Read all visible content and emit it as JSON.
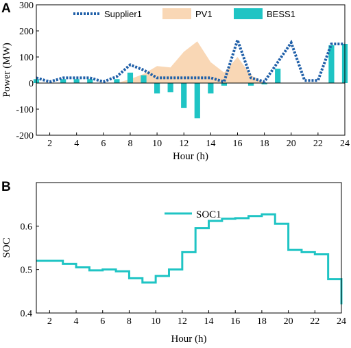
{
  "chart_data": [
    {
      "panel_label": "A",
      "type": "line",
      "xlabel": "Hour (h)",
      "ylabel": "Power (MW)",
      "xlim": [
        1,
        24
      ],
      "ylim": [
        -200,
        300
      ],
      "xticks": [
        "2",
        "4",
        "6",
        "8",
        "10",
        "12",
        "14",
        "16",
        "18",
        "20",
        "22",
        "24"
      ],
      "yticks": [
        "300",
        "200",
        "100",
        "0",
        "-100",
        "-200"
      ],
      "grid": false,
      "legend_position": "top",
      "series": [
        {
          "name": "Supplier1",
          "type": "line",
          "color": "#1f5fa8",
          "style": "dotted",
          "x": [
            1,
            2,
            3,
            4,
            5,
            6,
            7,
            8,
            9,
            10,
            11,
            12,
            13,
            14,
            15,
            16,
            17,
            18,
            19,
            20,
            21,
            22,
            23,
            24
          ],
          "values": [
            20,
            5,
            20,
            20,
            20,
            5,
            25,
            70,
            50,
            20,
            20,
            20,
            20,
            20,
            5,
            165,
            20,
            5,
            80,
            155,
            10,
            10,
            150,
            150
          ]
        },
        {
          "name": "PV1",
          "type": "area",
          "color": "#f9d7b5",
          "x": [
            1,
            2,
            3,
            4,
            5,
            6,
            7,
            8,
            9,
            10,
            11,
            12,
            13,
            14,
            15,
            16,
            17,
            18,
            19,
            20,
            21,
            22,
            23,
            24
          ],
          "values": [
            0,
            0,
            0,
            0,
            0,
            0,
            0,
            15,
            35,
            65,
            60,
            120,
            160,
            80,
            40,
            100,
            30,
            0,
            0,
            0,
            0,
            0,
            0,
            0
          ]
        },
        {
          "name": "BESS1",
          "type": "bar",
          "color": "#1fc4c4",
          "x": [
            1,
            2,
            3,
            4,
            5,
            6,
            7,
            8,
            9,
            10,
            11,
            12,
            13,
            14,
            15,
            16,
            17,
            18,
            19,
            20,
            21,
            22,
            23,
            24
          ],
          "values": [
            15,
            0,
            15,
            15,
            15,
            0,
            15,
            40,
            30,
            -40,
            -35,
            -95,
            -135,
            -40,
            -10,
            0,
            -10,
            -5,
            55,
            0,
            0,
            0,
            145,
            150
          ]
        }
      ]
    },
    {
      "panel_label": "B",
      "type": "line",
      "xlabel": "Hour (h)",
      "ylabel": "SOC",
      "xlim": [
        1,
        24
      ],
      "ylim": [
        0.4,
        0.7
      ],
      "xticks": [
        "2",
        "4",
        "6",
        "8",
        "10",
        "12",
        "14",
        "16",
        "18",
        "20",
        "22",
        "24"
      ],
      "yticks": [
        "0.6",
        "0.5",
        "0.4"
      ],
      "grid": false,
      "legend_position": "top-center",
      "series": [
        {
          "name": "SOC1",
          "type": "step",
          "color": "#1fc4c4",
          "x": [
            1,
            2,
            3,
            4,
            5,
            6,
            7,
            8,
            9,
            10,
            11,
            12,
            13,
            14,
            15,
            16,
            17,
            18,
            19,
            20,
            21,
            22,
            23,
            24
          ],
          "values": [
            0.52,
            0.52,
            0.513,
            0.505,
            0.498,
            0.5,
            0.496,
            0.48,
            0.47,
            0.485,
            0.5,
            0.54,
            0.595,
            0.612,
            0.617,
            0.618,
            0.623,
            0.627,
            0.605,
            0.545,
            0.54,
            0.535,
            0.478,
            0.42
          ]
        }
      ]
    }
  ]
}
